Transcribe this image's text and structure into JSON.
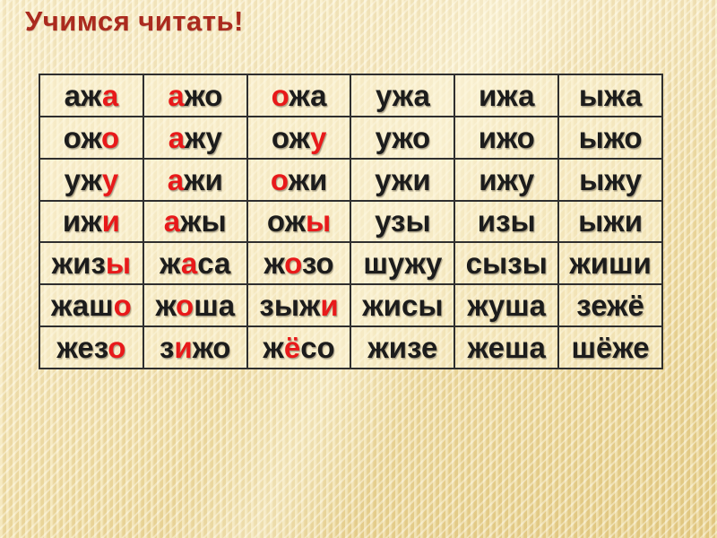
{
  "slide": {
    "title": "Учимся читать!",
    "colors": {
      "title": "#ab2a1e",
      "letter_black": "#1c1c1c",
      "letter_red": "#e8191a",
      "table_border": "#2f2f2f",
      "cell_bg": "rgba(251,243,214,0.5)",
      "bg_light": "#f9efcd",
      "bg_gold": "#e4cb84"
    }
  },
  "table": {
    "columns": 6,
    "rows": [
      {
        "cells": [
          {
            "segments": [
              {
                "text": "аж",
                "color": "black"
              },
              {
                "text": "а",
                "color": "red"
              }
            ]
          },
          {
            "segments": [
              {
                "text": "а",
                "color": "red"
              },
              {
                "text": "жо",
                "color": "black"
              }
            ]
          },
          {
            "segments": [
              {
                "text": "о",
                "color": "red"
              },
              {
                "text": "жа",
                "color": "black"
              }
            ]
          },
          {
            "segments": [
              {
                "text": "ужа",
                "color": "black"
              }
            ]
          },
          {
            "segments": [
              {
                "text": "ижа",
                "color": "black"
              }
            ]
          },
          {
            "segments": [
              {
                "text": "ыжа",
                "color": "black"
              }
            ]
          }
        ]
      },
      {
        "cells": [
          {
            "segments": [
              {
                "text": "ож",
                "color": "black"
              },
              {
                "text": "о",
                "color": "red"
              }
            ]
          },
          {
            "segments": [
              {
                "text": "а",
                "color": "red"
              },
              {
                "text": "жу",
                "color": "black"
              }
            ]
          },
          {
            "segments": [
              {
                "text": "ож",
                "color": "black"
              },
              {
                "text": "у",
                "color": "red"
              }
            ]
          },
          {
            "segments": [
              {
                "text": "ужо",
                "color": "black"
              }
            ]
          },
          {
            "segments": [
              {
                "text": "ижо",
                "color": "black"
              }
            ]
          },
          {
            "segments": [
              {
                "text": "ыжо",
                "color": "black"
              }
            ]
          }
        ]
      },
      {
        "cells": [
          {
            "segments": [
              {
                "text": "уж",
                "color": "black"
              },
              {
                "text": "у",
                "color": "red"
              }
            ]
          },
          {
            "segments": [
              {
                "text": "а",
                "color": "red"
              },
              {
                "text": "жи",
                "color": "black"
              }
            ]
          },
          {
            "segments": [
              {
                "text": "о",
                "color": "red"
              },
              {
                "text": "жи",
                "color": "black"
              }
            ]
          },
          {
            "segments": [
              {
                "text": "ужи",
                "color": "black"
              }
            ]
          },
          {
            "segments": [
              {
                "text": "ижу",
                "color": "black"
              }
            ]
          },
          {
            "segments": [
              {
                "text": "ыжу",
                "color": "black"
              }
            ]
          }
        ]
      },
      {
        "cells": [
          {
            "segments": [
              {
                "text": "иж",
                "color": "black"
              },
              {
                "text": "и",
                "color": "red"
              }
            ]
          },
          {
            "segments": [
              {
                "text": "а",
                "color": "red"
              },
              {
                "text": "жы",
                "color": "black"
              }
            ]
          },
          {
            "segments": [
              {
                "text": "ож",
                "color": "black"
              },
              {
                "text": "ы",
                "color": "red"
              }
            ]
          },
          {
            "segments": [
              {
                "text": "узы",
                "color": "black"
              }
            ]
          },
          {
            "segments": [
              {
                "text": "изы",
                "color": "black"
              }
            ]
          },
          {
            "segments": [
              {
                "text": "ыжи",
                "color": "black"
              }
            ]
          }
        ]
      },
      {
        "cells": [
          {
            "segments": [
              {
                "text": "жиз",
                "color": "black"
              },
              {
                "text": "ы",
                "color": "red"
              }
            ]
          },
          {
            "segments": [
              {
                "text": "ж",
                "color": "black"
              },
              {
                "text": "а",
                "color": "red"
              },
              {
                "text": "са",
                "color": "black"
              }
            ]
          },
          {
            "segments": [
              {
                "text": "ж",
                "color": "black"
              },
              {
                "text": "о",
                "color": "red"
              },
              {
                "text": "зо",
                "color": "black"
              }
            ]
          },
          {
            "segments": [
              {
                "text": "шужу",
                "color": "black"
              }
            ]
          },
          {
            "segments": [
              {
                "text": "сызы",
                "color": "black"
              }
            ]
          },
          {
            "segments": [
              {
                "text": "жиши",
                "color": "black"
              }
            ]
          }
        ]
      },
      {
        "cells": [
          {
            "segments": [
              {
                "text": "жаш",
                "color": "black"
              },
              {
                "text": "о",
                "color": "red"
              }
            ]
          },
          {
            "segments": [
              {
                "text": "ж",
                "color": "black"
              },
              {
                "text": "о",
                "color": "red"
              },
              {
                "text": "ша",
                "color": "black"
              }
            ]
          },
          {
            "segments": [
              {
                "text": "зыж",
                "color": "black"
              },
              {
                "text": "и",
                "color": "red"
              }
            ]
          },
          {
            "segments": [
              {
                "text": "жисы",
                "color": "black"
              }
            ]
          },
          {
            "segments": [
              {
                "text": "жуша",
                "color": "black"
              }
            ]
          },
          {
            "segments": [
              {
                "text": "зежё",
                "color": "black"
              }
            ]
          }
        ]
      },
      {
        "cells": [
          {
            "segments": [
              {
                "text": "жез",
                "color": "black"
              },
              {
                "text": "о",
                "color": "red"
              }
            ]
          },
          {
            "segments": [
              {
                "text": "з",
                "color": "black"
              },
              {
                "text": "и",
                "color": "red"
              },
              {
                "text": "жо",
                "color": "black"
              }
            ]
          },
          {
            "segments": [
              {
                "text": "ж",
                "color": "black"
              },
              {
                "text": "ё",
                "color": "red"
              },
              {
                "text": "со",
                "color": "black"
              }
            ]
          },
          {
            "segments": [
              {
                "text": "жизе",
                "color": "black"
              }
            ]
          },
          {
            "segments": [
              {
                "text": "жеша",
                "color": "black"
              }
            ]
          },
          {
            "segments": [
              {
                "text": "шёже",
                "color": "black"
              }
            ]
          }
        ]
      }
    ]
  }
}
